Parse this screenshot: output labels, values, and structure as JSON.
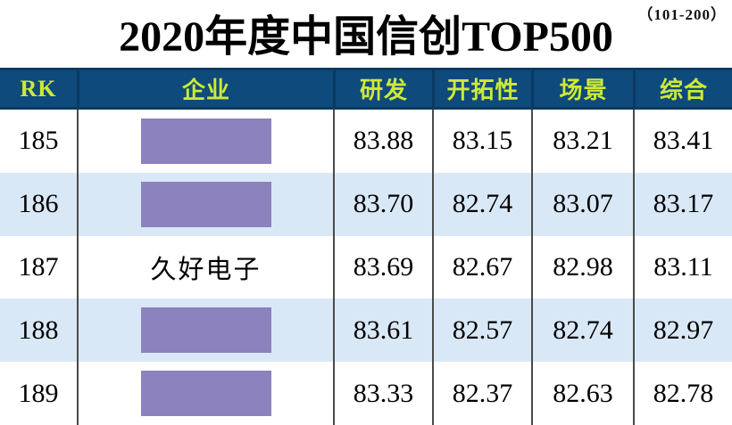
{
  "page": {
    "range_note": "（101-200）",
    "title": "2020年度中国信创TOP500"
  },
  "table": {
    "columns": [
      {
        "key": "rk",
        "label": "RK"
      },
      {
        "key": "company",
        "label": "企业"
      },
      {
        "key": "rd",
        "label": "研发"
      },
      {
        "key": "pioneer",
        "label": "开拓性"
      },
      {
        "key": "scene",
        "label": "场景"
      },
      {
        "key": "overall",
        "label": "综合"
      }
    ],
    "rows": [
      {
        "rk": "185",
        "company": "",
        "company_redacted": true,
        "rd": "83.88",
        "pioneer": "83.15",
        "scene": "83.21",
        "overall": "83.41"
      },
      {
        "rk": "186",
        "company": "",
        "company_redacted": true,
        "rd": "83.70",
        "pioneer": "82.74",
        "scene": "83.07",
        "overall": "83.17"
      },
      {
        "rk": "187",
        "company": "久好电子",
        "company_redacted": false,
        "rd": "83.69",
        "pioneer": "82.67",
        "scene": "82.98",
        "overall": "83.11"
      },
      {
        "rk": "188",
        "company": "",
        "company_redacted": true,
        "rd": "83.61",
        "pioneer": "82.57",
        "scene": "82.74",
        "overall": "82.97"
      },
      {
        "rk": "189",
        "company": "",
        "company_redacted": true,
        "rd": "83.33",
        "pioneer": "82.37",
        "scene": "82.63",
        "overall": "82.78"
      }
    ]
  },
  "chart_data": {
    "type": "table",
    "title": "2020年度中国信创TOP500",
    "subtitle": "（101-200）",
    "columns": [
      "RK",
      "企业",
      "研发",
      "开拓性",
      "场景",
      "综合"
    ],
    "rows": [
      [
        185,
        "",
        83.88,
        83.15,
        83.21,
        83.41
      ],
      [
        186,
        "",
        83.7,
        82.74,
        83.07,
        83.17
      ],
      [
        187,
        "久好电子",
        83.69,
        82.67,
        82.98,
        83.11
      ],
      [
        188,
        "",
        83.61,
        82.57,
        82.74,
        82.97
      ],
      [
        189,
        "",
        83.33,
        82.37,
        82.63,
        82.78
      ]
    ],
    "notes": "company names for ranks 185, 186, 188, 189 are covered by purple redaction boxes"
  },
  "colors": {
    "header_bg": "#0e4a7b",
    "header_text": "#cdea36",
    "alt_row_bg": "#d9e8f6",
    "redaction_box": "#8c82bd",
    "body_border": "#4a4a4a",
    "header_border": "#0a3a62",
    "text": "#000000"
  }
}
